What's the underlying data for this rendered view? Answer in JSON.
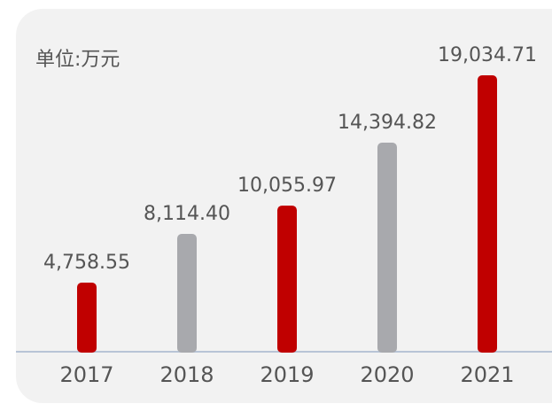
{
  "chart_data": {
    "type": "bar",
    "title": "单位:万元",
    "categories": [
      "2017",
      "2018",
      "2019",
      "2020",
      "2021"
    ],
    "values": [
      4758.55,
      8114.4,
      10055.97,
      14394.82,
      19034.71
    ],
    "value_labels": [
      "4,758.55",
      "8,114.40",
      "10,055.97",
      "14,394.82",
      "19,034.71"
    ],
    "colors": [
      "#c00000",
      "#a8a9ad",
      "#c00000",
      "#a8a9ad",
      "#c00000"
    ]
  }
}
